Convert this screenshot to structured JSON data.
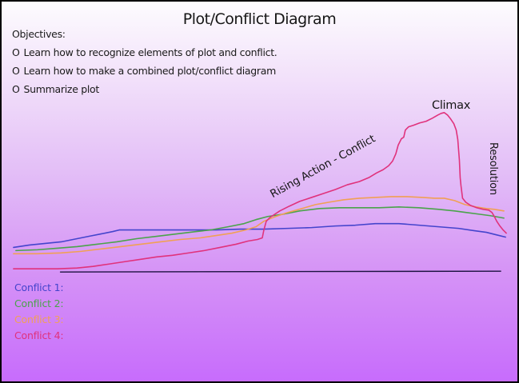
{
  "slide": {
    "title": "Plot/Conflict Diagram",
    "objectives": {
      "heading": "Objectives:",
      "items": [
        {
          "bullet": "O",
          "text": "Learn how to recognize elements of plot and conflict."
        },
        {
          "bullet": "O",
          "text": "Learn how to make a combined plot/conflict diagram"
        },
        {
          "bullet": "O",
          "text": "Summarize plot"
        }
      ]
    }
  },
  "annotations": {
    "climax": "Climax",
    "rising_action": "Rising Action - Conflict",
    "resolution": "Resolution"
  },
  "legend": {
    "items": [
      {
        "label": "Conflict 1:",
        "color": "#4444cc"
      },
      {
        "label": "Conflict 2:",
        "color": "#4ba34b"
      },
      {
        "label": "Conflict 3:",
        "color": "#f0a055"
      },
      {
        "label": "Conflict 4:",
        "color": "#e0327c"
      }
    ]
  },
  "colors": {
    "background_top": "#fdfcfe",
    "background_bottom": "#c76cfc",
    "border": "#000000",
    "baseline": "#1c1240",
    "text": "#1a1a1a"
  },
  "chart_data": {
    "type": "line",
    "title": "Plot/Conflict Diagram",
    "description": "Freehand story-intensity curves for four conflicts rising to a climax then resolving; no numeric axes shown.",
    "units": "pixel coordinates on a 649x479 canvas, y increases downward",
    "legend_position": "bottom-left",
    "grid": false,
    "annotations": [
      {
        "text": "Climax",
        "x": 563,
        "y": 131
      },
      {
        "text": "Rising Action - Conflict",
        "x": 415,
        "y": 209,
        "rotation_deg": -29
      },
      {
        "text": "Resolution",
        "x": 615,
        "y": 215,
        "rotation_deg": 90
      }
    ],
    "baseline": {
      "color": "#1c1240",
      "points": [
        [
          74,
          341
        ],
        [
          628,
          340
        ]
      ]
    },
    "series": [
      {
        "name": "Conflict 1",
        "color": "#4444cc",
        "points": [
          [
            15,
            310
          ],
          [
            35,
            307
          ],
          [
            55,
            305
          ],
          [
            75,
            303
          ],
          [
            95,
            299
          ],
          [
            110,
            296
          ],
          [
            125,
            293
          ],
          [
            140,
            290
          ],
          [
            148,
            288
          ],
          [
            170,
            288
          ],
          [
            200,
            288
          ],
          [
            240,
            288
          ],
          [
            270,
            288
          ],
          [
            300,
            287
          ],
          [
            330,
            287
          ],
          [
            360,
            286
          ],
          [
            390,
            285
          ],
          [
            420,
            283
          ],
          [
            445,
            282
          ],
          [
            470,
            280
          ],
          [
            500,
            280
          ],
          [
            525,
            282
          ],
          [
            550,
            284
          ],
          [
            575,
            286
          ],
          [
            595,
            289
          ],
          [
            610,
            291
          ],
          [
            622,
            294
          ],
          [
            634,
            297
          ]
        ]
      },
      {
        "name": "Conflict 2",
        "color": "#4ba34b",
        "points": [
          [
            18,
            314
          ],
          [
            45,
            313
          ],
          [
            70,
            311
          ],
          [
            95,
            309
          ],
          [
            120,
            306
          ],
          [
            145,
            303
          ],
          [
            170,
            299
          ],
          [
            195,
            296
          ],
          [
            220,
            293
          ],
          [
            245,
            290
          ],
          [
            263,
            288
          ],
          [
            285,
            284
          ],
          [
            305,
            280
          ],
          [
            320,
            275
          ],
          [
            335,
            271
          ],
          [
            355,
            268
          ],
          [
            375,
            264
          ],
          [
            400,
            261
          ],
          [
            425,
            260
          ],
          [
            450,
            260
          ],
          [
            475,
            260
          ],
          [
            500,
            259
          ],
          [
            525,
            260
          ],
          [
            550,
            262
          ],
          [
            570,
            264
          ],
          [
            585,
            266
          ],
          [
            600,
            268
          ],
          [
            615,
            270
          ],
          [
            632,
            273
          ]
        ]
      },
      {
        "name": "Conflict 3",
        "color": "#f0a055",
        "points": [
          [
            15,
            318
          ],
          [
            45,
            318
          ],
          [
            75,
            317
          ],
          [
            100,
            315
          ],
          [
            125,
            312
          ],
          [
            150,
            309
          ],
          [
            175,
            306
          ],
          [
            200,
            303
          ],
          [
            225,
            300
          ],
          [
            250,
            298
          ],
          [
            270,
            295
          ],
          [
            290,
            292
          ],
          [
            307,
            288
          ],
          [
            320,
            284
          ],
          [
            330,
            277
          ],
          [
            345,
            271
          ],
          [
            360,
            266
          ],
          [
            378,
            261
          ],
          [
            395,
            256
          ],
          [
            412,
            253
          ],
          [
            430,
            250
          ],
          [
            450,
            248
          ],
          [
            470,
            247
          ],
          [
            490,
            246
          ],
          [
            510,
            246
          ],
          [
            530,
            247
          ],
          [
            545,
            248
          ],
          [
            557,
            248
          ],
          [
            570,
            251
          ],
          [
            583,
            256
          ],
          [
            597,
            259
          ],
          [
            610,
            261
          ],
          [
            620,
            262
          ],
          [
            632,
            264
          ]
        ]
      },
      {
        "name": "Conflict 4",
        "color": "#e0327c",
        "points": [
          [
            15,
            337
          ],
          [
            45,
            337
          ],
          [
            70,
            337
          ],
          [
            95,
            336
          ],
          [
            115,
            334
          ],
          [
            135,
            331
          ],
          [
            155,
            328
          ],
          [
            175,
            325
          ],
          [
            195,
            322
          ],
          [
            215,
            320
          ],
          [
            235,
            317
          ],
          [
            255,
            314
          ],
          [
            275,
            310
          ],
          [
            295,
            306
          ],
          [
            310,
            302
          ],
          [
            322,
            300
          ],
          [
            328,
            298
          ],
          [
            330,
            288
          ],
          [
            333,
            277
          ],
          [
            338,
            272
          ],
          [
            350,
            264
          ],
          [
            362,
            258
          ],
          [
            375,
            252
          ],
          [
            390,
            247
          ],
          [
            405,
            242
          ],
          [
            420,
            237
          ],
          [
            435,
            231
          ],
          [
            450,
            227
          ],
          [
            462,
            222
          ],
          [
            472,
            216
          ],
          [
            480,
            212
          ],
          [
            487,
            207
          ],
          [
            492,
            201
          ],
          [
            496,
            192
          ],
          [
            499,
            181
          ],
          [
            503,
            173
          ],
          [
            506,
            171
          ],
          [
            508,
            162
          ],
          [
            512,
            158
          ],
          [
            518,
            156
          ],
          [
            526,
            153
          ],
          [
            534,
            151
          ],
          [
            542,
            147
          ],
          [
            549,
            143
          ],
          [
            553,
            141
          ],
          [
            557,
            140
          ],
          [
            561,
            143
          ],
          [
            565,
            148
          ],
          [
            569,
            154
          ],
          [
            572,
            162
          ],
          [
            574,
            174
          ],
          [
            576,
            200
          ],
          [
            577,
            222
          ],
          [
            578,
            232
          ],
          [
            580,
            248
          ],
          [
            584,
            253
          ],
          [
            590,
            257
          ],
          [
            598,
            260
          ],
          [
            606,
            262
          ],
          [
            613,
            263
          ],
          [
            617,
            266
          ],
          [
            620,
            271
          ],
          [
            623,
            277
          ],
          [
            627,
            283
          ],
          [
            631,
            288
          ],
          [
            635,
            292
          ]
        ]
      }
    ]
  }
}
